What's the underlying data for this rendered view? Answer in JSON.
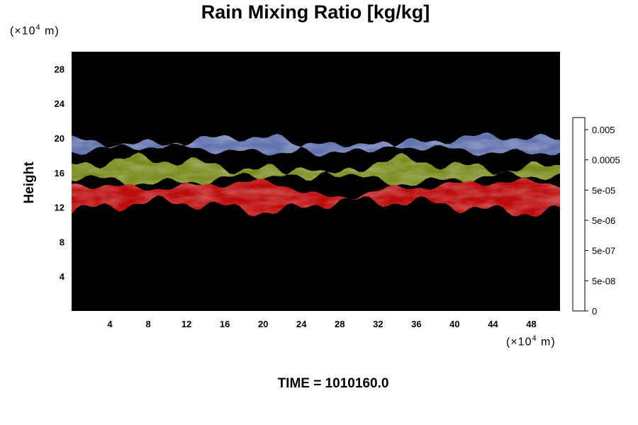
{
  "chart_data": {
    "type": "heatmap",
    "title": "Rain Mixing Ratio [kg/kg]",
    "ylabel": "Height",
    "xlabel": "",
    "x_unit": {
      "prefix": "(×10",
      "exp": "4",
      "suffix": " m)"
    },
    "y_unit": {
      "prefix": "(×10",
      "exp": "4",
      "suffix": " m)"
    },
    "xlim": [
      0,
      51
    ],
    "ylim": [
      0,
      30
    ],
    "x_ticks": [
      "4",
      "8",
      "12",
      "16",
      "20",
      "24",
      "28",
      "32",
      "36",
      "40",
      "44",
      "48"
    ],
    "y_ticks": [
      "4",
      "8",
      "12",
      "16",
      "20",
      "24",
      "28"
    ],
    "colorbar": {
      "labels": [
        "0.005",
        "0.0005",
        "5e-05",
        "5e-06",
        "5e-07",
        "5e-08",
        "0"
      ],
      "levels": 16,
      "colors": {
        "top": "#ffffff",
        "bottom": "#000000"
      }
    },
    "layers": [
      {
        "name": "upper",
        "color": "#6f83c6",
        "base_km": [
          180,
          193
        ],
        "top_km": [
          190,
          205
        ]
      },
      {
        "name": "middle",
        "color": "#8a9f22",
        "base_km": [
          145,
          160
        ],
        "top_km": [
          160,
          180
        ]
      },
      {
        "name": "lower",
        "color": "#d60f0f",
        "base_km": [
          110,
          130
        ],
        "top_km": [
          140,
          152
        ]
      }
    ],
    "background": "#000000"
  },
  "footer": {
    "time": "TIME = 1010160.0"
  }
}
